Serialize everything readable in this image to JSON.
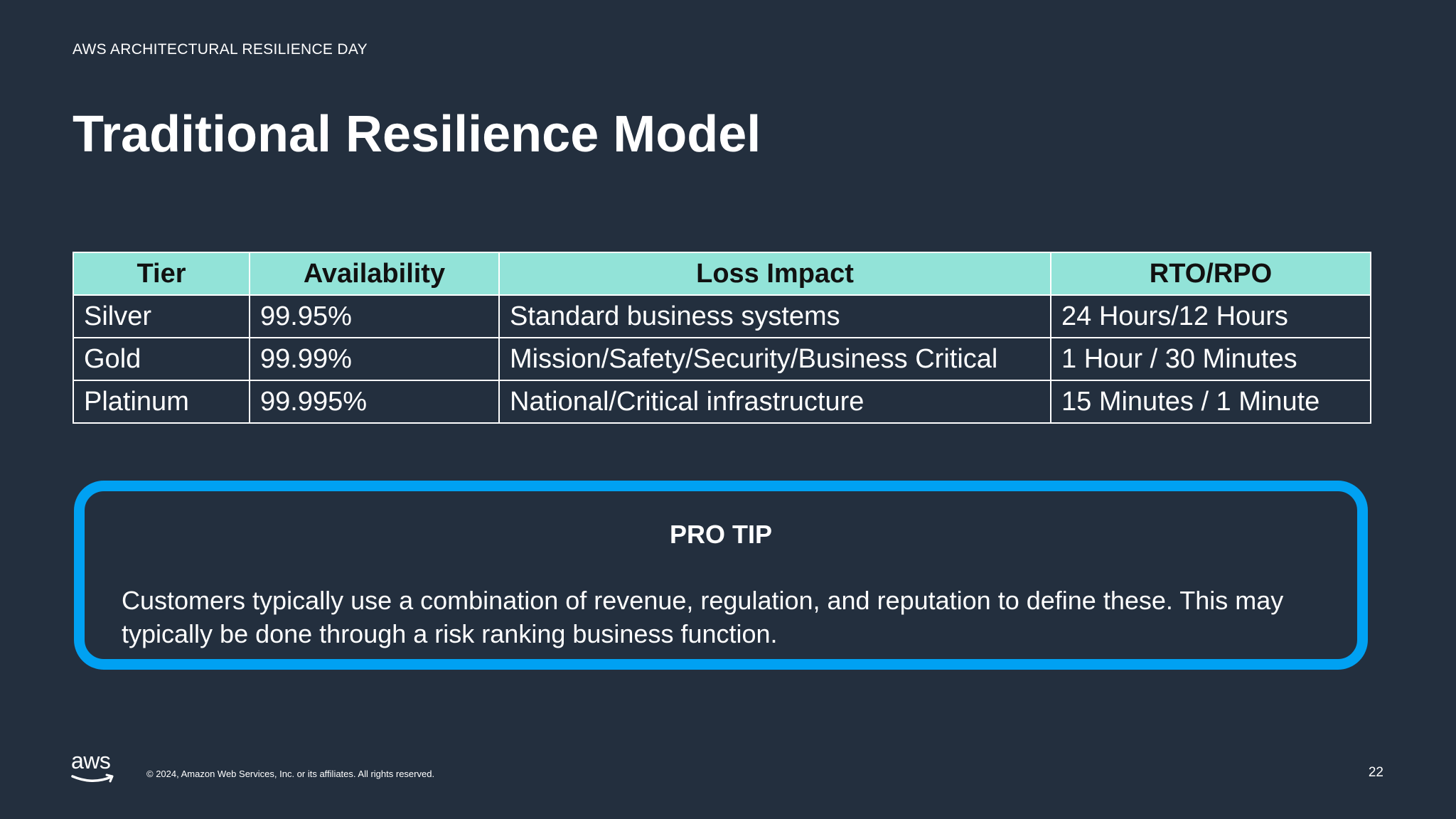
{
  "header": {
    "eyebrow": "AWS ARCHITECTURAL RESILIENCE DAY",
    "title": "Traditional Resilience Model"
  },
  "table": {
    "columns": [
      "Tier",
      "Availability",
      "Loss Impact",
      "RTO/RPO"
    ],
    "rows": [
      [
        "Silver",
        "99.95%",
        "Standard business systems",
        "24 Hours/12 Hours"
      ],
      [
        "Gold",
        "99.99%",
        "Mission/Safety/Security/Business Critical",
        "1 Hour / 30 Minutes"
      ],
      [
        "Platinum",
        "99.995%",
        "National/Critical infrastructure",
        "15 Minutes / 1 Minute"
      ]
    ]
  },
  "protip": {
    "heading": "PRO TIP",
    "body": "Customers typically use a combination of revenue, regulation, and reputation to define these. This may typically be done through a risk ranking business function."
  },
  "footer": {
    "logo_text": "aws",
    "copyright": "© 2024, Amazon Web Services, Inc. or its affiliates. All rights reserved.",
    "page_number": "22"
  },
  "colors": {
    "background": "#232f3e",
    "table_header": "#92e3d8",
    "protip_border": "#00a1f2"
  }
}
